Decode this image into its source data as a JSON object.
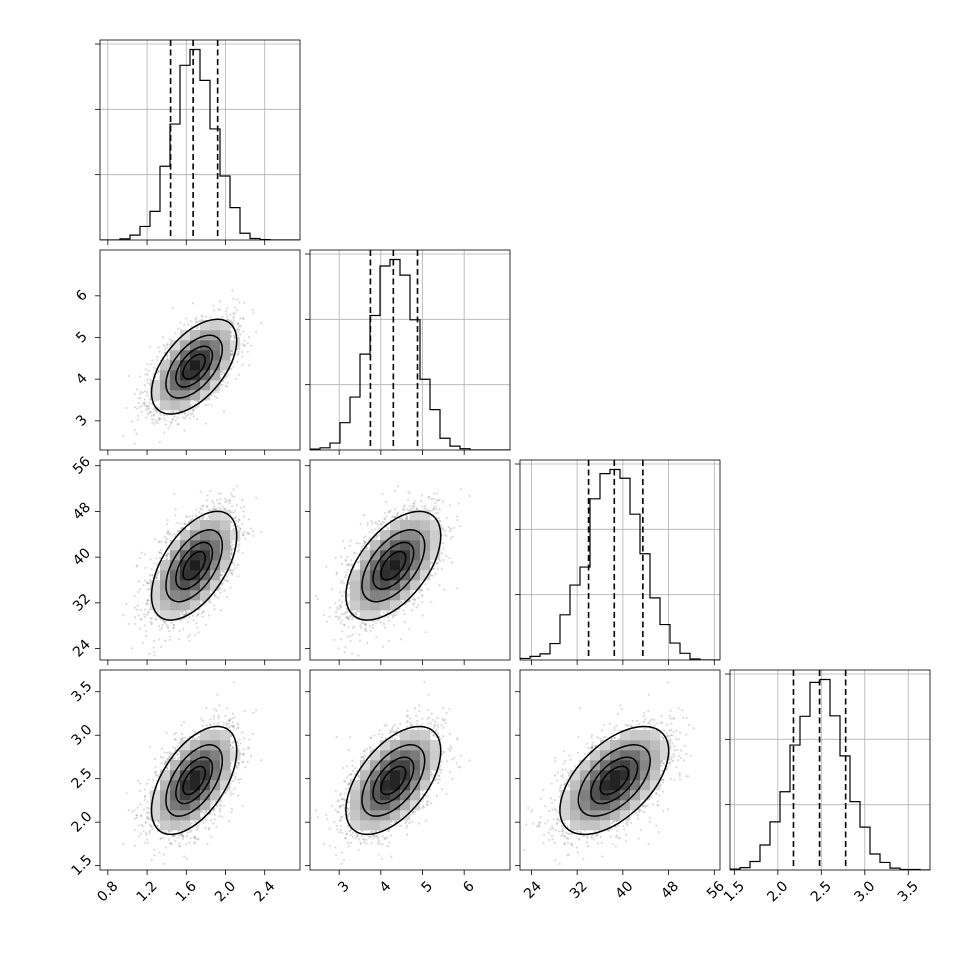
{
  "chart_data": {
    "type": "corner",
    "parameters": [
      {
        "mean": 1.68,
        "sd": 0.21,
        "range": [
          0.72,
          2.76
        ],
        "ticks": [
          0.8,
          1.2,
          1.6,
          2.0,
          2.4
        ],
        "tick_labels": [
          "0.8",
          "1.2",
          "1.6",
          "2.0",
          "2.4"
        ],
        "quantiles": [
          1.44,
          1.67,
          1.92
        ]
      },
      {
        "mean": 4.3,
        "sd": 0.55,
        "range": [
          2.3,
          7.1
        ],
        "ticks": [
          3,
          4,
          5,
          6
        ],
        "tick_labels": [
          "3",
          "4",
          "5",
          "6"
        ],
        "quantiles": [
          3.75,
          4.3,
          4.88
        ]
      },
      {
        "mean": 38.5,
        "sd": 4.6,
        "range": [
          22,
          57
        ],
        "ticks": [
          24,
          32,
          40,
          48,
          56
        ],
        "tick_labels": [
          "24",
          "32",
          "40",
          "48",
          "56"
        ],
        "quantiles": [
          34.0,
          38.5,
          43.5
        ]
      },
      {
        "mean": 2.48,
        "sd": 0.3,
        "range": [
          1.45,
          3.75
        ],
        "ticks": [
          1.5,
          2.0,
          2.5,
          3.0,
          3.5
        ],
        "tick_labels": [
          "1.5",
          "2.0",
          "2.5",
          "3.0",
          "3.5"
        ],
        "quantiles": [
          2.18,
          2.48,
          2.78
        ]
      }
    ],
    "correlation": 0.55,
    "histogram_bins": 20,
    "contour_levels_sigma": [
      0.5,
      1.0,
      1.5,
      2.0
    ],
    "quantiles_shown": [
      0.16,
      0.5,
      0.84
    ],
    "grid": true
  }
}
